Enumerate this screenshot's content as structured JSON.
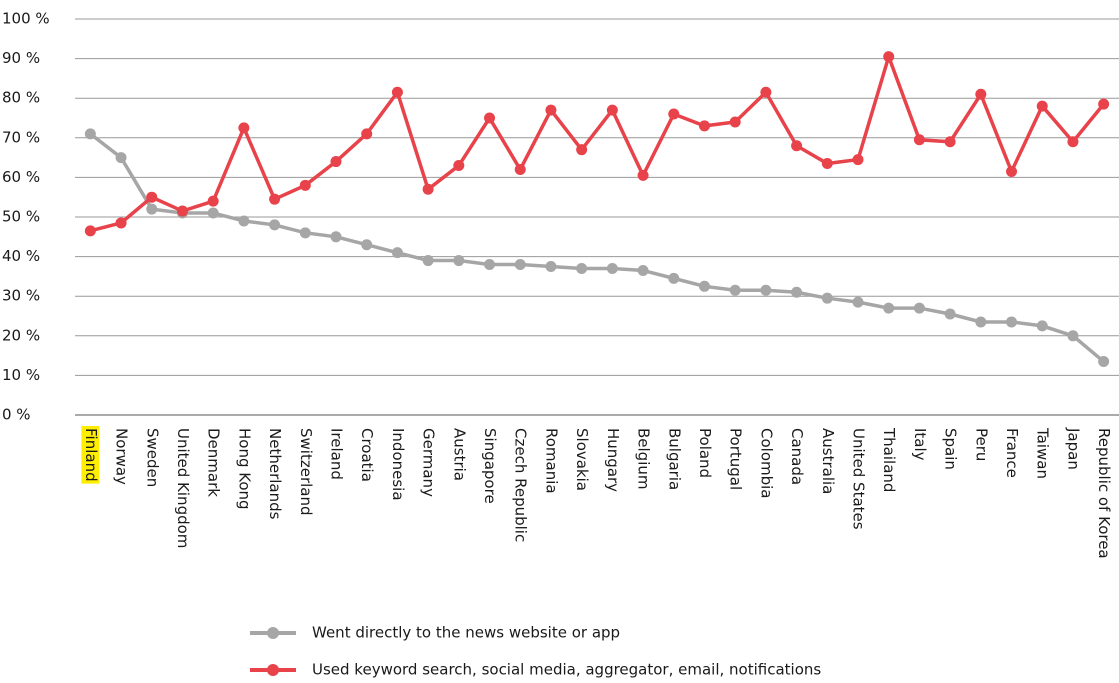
{
  "chart_data": {
    "type": "line",
    "categories": [
      "Finland",
      "Norway",
      "Sweden",
      "United Kingdom",
      "Denmark",
      "Hong Kong",
      "Netherlands",
      "Switzerland",
      "Ireland",
      "Croatia",
      "Indonesia",
      "Germany",
      "Austria",
      "Singapore",
      "Czech Republic",
      "Romania",
      "Slovakia",
      "Hungary",
      "Belgium",
      "Bulgaria",
      "Poland",
      "Portugal",
      "Colombia",
      "Canada",
      "Australia",
      "United States",
      "Thailand",
      "Italy",
      "Spain",
      "Peru",
      "France",
      "Taiwan",
      "Japan",
      "Republic of Korea"
    ],
    "series": [
      {
        "name": "Went directly to the news website or app",
        "color": "#a6a6a6",
        "values": [
          71,
          65,
          52,
          51,
          51,
          49,
          48,
          46,
          45,
          43,
          41,
          39,
          39,
          38,
          38,
          37.5,
          37,
          37,
          36.5,
          34.5,
          32.5,
          31.5,
          31.5,
          31,
          29.5,
          28.5,
          27,
          27,
          25.5,
          23.5,
          23.5,
          22.5,
          20,
          13.5
        ]
      },
      {
        "name": "Used keyword search, social media, aggregator, email, notifications",
        "color": "#e8424a",
        "values": [
          46.5,
          48.5,
          55,
          51.5,
          54,
          72.5,
          54.5,
          58,
          64,
          71,
          81.5,
          57,
          63,
          75,
          62,
          77,
          67,
          77,
          60.5,
          76,
          73,
          74,
          81.5,
          68,
          63.5,
          64.5,
          90.5,
          69.5,
          69,
          81,
          61.5,
          78,
          69,
          78.5
        ]
      }
    ],
    "ylim": [
      0,
      100
    ],
    "yticks": [
      {
        "value": 0,
        "label": "0 %"
      },
      {
        "value": 10,
        "label": "10 %"
      },
      {
        "value": 20,
        "label": "20 %"
      },
      {
        "value": 30,
        "label": "30 %"
      },
      {
        "value": 40,
        "label": "40 %"
      },
      {
        "value": 50,
        "label": "50 %"
      },
      {
        "value": 60,
        "label": "60 %"
      },
      {
        "value": 70,
        "label": "70 %"
      },
      {
        "value": 80,
        "label": "80 %"
      },
      {
        "value": 90,
        "label": "90 %"
      },
      {
        "value": 100,
        "label": "100 %"
      }
    ],
    "grid": true
  }
}
